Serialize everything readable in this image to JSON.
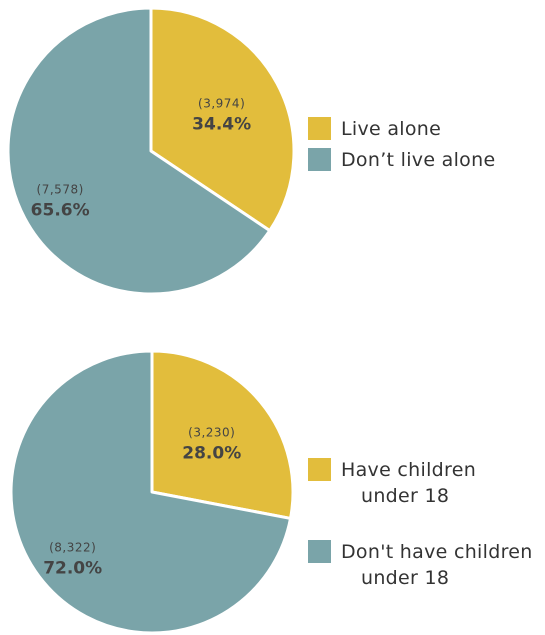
{
  "chart_data": [
    {
      "type": "pie",
      "slices": [
        {
          "label": "Live alone",
          "count": "(3,974)",
          "percent": "34.4%",
          "value": 34.4,
          "color": "#e2bd3c"
        },
        {
          "label": "Don’t live alone",
          "count": "(7,578)",
          "percent": "65.6%",
          "value": 65.6,
          "color": "#7aa4a9"
        }
      ],
      "legend": [
        {
          "lines": [
            "Live alone"
          ],
          "color": "#e2bd3c"
        },
        {
          "lines": [
            "Don’t live alone"
          ],
          "color": "#7aa4a9"
        }
      ],
      "legend_position": "right"
    },
    {
      "type": "pie",
      "slices": [
        {
          "label": "Have children under 18",
          "count": "(3,230)",
          "percent": "28.0%",
          "value": 28.0,
          "color": "#e2bd3c"
        },
        {
          "label": "Don't have children under 18",
          "count": "(8,322)",
          "percent": "72.0%",
          "value": 72.0,
          "color": "#7aa4a9"
        }
      ],
      "legend": [
        {
          "lines": [
            "Have children",
            "under 18"
          ],
          "color": "#e2bd3c"
        },
        {
          "lines": [
            "Don't have children",
            "under 18"
          ],
          "color": "#7aa4a9"
        }
      ],
      "legend_position": "right"
    }
  ]
}
